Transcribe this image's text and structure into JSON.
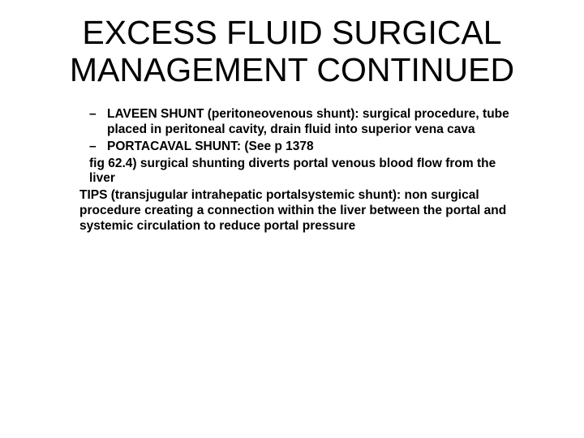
{
  "title_line1": "EXCESS FLUID SURGICAL",
  "title_line2": "MANAGEMENT CONTINUED",
  "items": [
    {
      "dash": "–",
      "text": "LAVEEN SHUNT (peritoneovenous shunt): surgical procedure, tube placed in peritoneal cavity, drain fluid into superior vena cava"
    },
    {
      "dash": "–",
      "text": "PORTACAVAL SHUNT: (See p 1378"
    }
  ],
  "cont1": "fig 62.4)  surgical shunting diverts portal venous blood flow from the liver",
  "cont2": "TIPS (transjugular intrahepatic portalsystemic shunt): non surgical procedure creating a connection within the liver between the portal and systemic circulation to reduce portal pressure"
}
